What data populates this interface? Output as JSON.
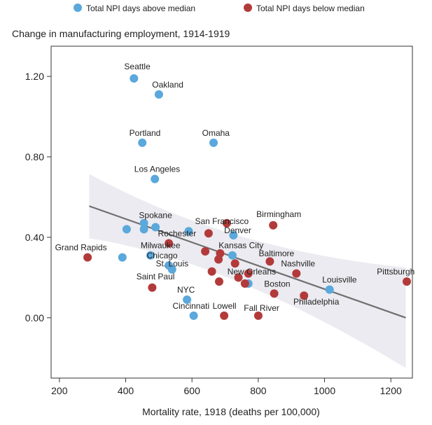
{
  "chart_data": {
    "type": "scatter",
    "title": "Change in manufacturing employment, 1914-1919",
    "xlabel": "Mortality rate, 1918 (deaths per 100,000)",
    "ylabel": "",
    "xlim": [
      175,
      1265
    ],
    "ylim": [
      -0.3,
      1.35
    ],
    "xticks": [
      200,
      400,
      600,
      800,
      1000,
      1200
    ],
    "yticks": [
      0.0,
      0.4,
      0.8,
      1.2
    ],
    "ytick_labels": [
      "0.00",
      "0.40",
      "0.80",
      "1.20"
    ],
    "grid": false,
    "legend_position": "top",
    "colors": {
      "above": "#5aa8dc",
      "below": "#b33a3a",
      "trend": "#707070",
      "band": "#e8e8ee"
    },
    "legend": [
      {
        "key": "above",
        "label": "Total NPI days above median"
      },
      {
        "key": "below",
        "label": "Total NPI days below median"
      }
    ],
    "trend": {
      "start": [
        290,
        0.555
      ],
      "end": [
        1245,
        0.0
      ],
      "band_start_half": 0.16,
      "band_mid_half": 0.025,
      "band_end_half": 0.25
    },
    "series": [
      {
        "name": "Total NPI days above median",
        "key": "above",
        "points": [
          {
            "x": 425,
            "y": 1.19
          },
          {
            "x": 500,
            "y": 1.11
          },
          {
            "x": 450,
            "y": 0.87
          },
          {
            "x": 665,
            "y": 0.87
          },
          {
            "x": 488,
            "y": 0.69
          },
          {
            "x": 403,
            "y": 0.44
          },
          {
            "x": 455,
            "y": 0.47
          },
          {
            "x": 490,
            "y": 0.45
          },
          {
            "x": 455,
            "y": 0.44
          },
          {
            "x": 590,
            "y": 0.43
          },
          {
            "x": 725,
            "y": 0.41
          },
          {
            "x": 390,
            "y": 0.3
          },
          {
            "x": 475,
            "y": 0.31
          },
          {
            "x": 722,
            "y": 0.31
          },
          {
            "x": 530,
            "y": 0.26
          },
          {
            "x": 540,
            "y": 0.24
          },
          {
            "x": 770,
            "y": 0.17
          },
          {
            "x": 1015,
            "y": 0.14
          },
          {
            "x": 585,
            "y": 0.09
          },
          {
            "x": 605,
            "y": 0.01
          }
        ]
      },
      {
        "name": "Total NPI days below median",
        "key": "below",
        "points": [
          {
            "x": 285,
            "y": 0.3
          },
          {
            "x": 705,
            "y": 0.47
          },
          {
            "x": 845,
            "y": 0.46
          },
          {
            "x": 650,
            "y": 0.42
          },
          {
            "x": 530,
            "y": 0.37
          },
          {
            "x": 640,
            "y": 0.33
          },
          {
            "x": 685,
            "y": 0.32
          },
          {
            "x": 680,
            "y": 0.29
          },
          {
            "x": 835,
            "y": 0.28
          },
          {
            "x": 730,
            "y": 0.27
          },
          {
            "x": 915,
            "y": 0.22
          },
          {
            "x": 660,
            "y": 0.23
          },
          {
            "x": 770,
            "y": 0.22
          },
          {
            "x": 740,
            "y": 0.2
          },
          {
            "x": 682,
            "y": 0.18
          },
          {
            "x": 760,
            "y": 0.17
          },
          {
            "x": 1248,
            "y": 0.18
          },
          {
            "x": 480,
            "y": 0.15
          },
          {
            "x": 848,
            "y": 0.12
          },
          {
            "x": 938,
            "y": 0.11
          },
          {
            "x": 697,
            "y": 0.01
          },
          {
            "x": 800,
            "y": 0.01
          }
        ]
      }
    ],
    "annotations": [
      {
        "text": "Seattle",
        "x": 435,
        "y": 1.235,
        "anchor": "middle"
      },
      {
        "text": "Oakland",
        "x": 527,
        "y": 1.145,
        "anchor": "middle"
      },
      {
        "text": "Portland",
        "x": 458,
        "y": 0.905,
        "anchor": "middle"
      },
      {
        "text": "Omaha",
        "x": 672,
        "y": 0.905,
        "anchor": "middle"
      },
      {
        "text": "Los Angeles",
        "x": 495,
        "y": 0.725,
        "anchor": "middle"
      },
      {
        "text": "Spokane",
        "x": 490,
        "y": 0.495,
        "anchor": "middle"
      },
      {
        "text": "San Francisco",
        "x": 690,
        "y": 0.465,
        "anchor": "middle"
      },
      {
        "text": "Birmingham",
        "x": 862,
        "y": 0.5,
        "anchor": "middle"
      },
      {
        "text": "Rochester",
        "x": 555,
        "y": 0.405,
        "anchor": "middle"
      },
      {
        "text": "Denver",
        "x": 738,
        "y": 0.42,
        "anchor": "middle"
      },
      {
        "text": "Grand Rapids",
        "x": 265,
        "y": 0.335,
        "anchor": "middle"
      },
      {
        "text": "Milwaukee",
        "x": 505,
        "y": 0.345,
        "anchor": "middle"
      },
      {
        "text": "Kansas City",
        "x": 748,
        "y": 0.345,
        "anchor": "middle"
      },
      {
        "text": "Chicago",
        "x": 510,
        "y": 0.295,
        "anchor": "middle"
      },
      {
        "text": "Baltimore",
        "x": 855,
        "y": 0.305,
        "anchor": "middle"
      },
      {
        "text": "St. Louis",
        "x": 540,
        "y": 0.255,
        "anchor": "middle"
      },
      {
        "text": "Nashville",
        "x": 920,
        "y": 0.255,
        "anchor": "middle"
      },
      {
        "text": "New Orleans",
        "x": 780,
        "y": 0.215,
        "anchor": "middle"
      },
      {
        "text": "Pittsburgh",
        "x": 1215,
        "y": 0.215,
        "anchor": "middle"
      },
      {
        "text": "Saint Paul",
        "x": 490,
        "y": 0.19,
        "anchor": "middle"
      },
      {
        "text": "Louisville",
        "x": 1045,
        "y": 0.175,
        "anchor": "middle"
      },
      {
        "text": "Boston",
        "x": 857,
        "y": 0.155,
        "anchor": "middle"
      },
      {
        "text": "NYC",
        "x": 582,
        "y": 0.125,
        "anchor": "middle"
      },
      {
        "text": "Philadelphia",
        "x": 975,
        "y": 0.065,
        "anchor": "middle"
      },
      {
        "text": "Cincinnati",
        "x": 597,
        "y": 0.045,
        "anchor": "middle"
      },
      {
        "text": "Lowell",
        "x": 698,
        "y": 0.045,
        "anchor": "middle"
      },
      {
        "text": "Fall River",
        "x": 810,
        "y": 0.035,
        "anchor": "middle"
      }
    ]
  }
}
